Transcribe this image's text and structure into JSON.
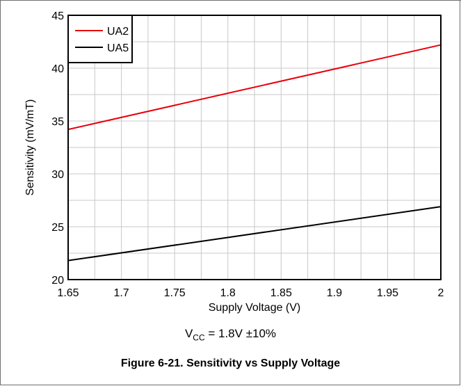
{
  "caption": "Figure 6-21. Sensitivity vs Supply Voltage",
  "condition": {
    "prefix": "V",
    "subscript": "CC",
    "suffix": " = 1.8V ±10%"
  },
  "colors": {
    "UA2": "#e8000b",
    "UA5": "#000000",
    "grid": "#c8c8c8"
  },
  "chart_data": {
    "type": "line",
    "title": "",
    "xlabel": "Supply Voltage (V)",
    "ylabel": "Sensitivity (mV/mT)",
    "xlim": [
      1.65,
      2.0
    ],
    "ylim": [
      20,
      45
    ],
    "xticks": [
      "1.65",
      "1.7",
      "1.75",
      "1.8",
      "1.85",
      "1.9",
      "1.95",
      "2"
    ],
    "yticks": [
      "20",
      "25",
      "30",
      "35",
      "40",
      "45"
    ],
    "grid": true,
    "legend_position": "top-left",
    "series": [
      {
        "name": "UA2",
        "color": "#e8000b",
        "x": [
          1.65,
          2.0
        ],
        "y": [
          34.2,
          42.2
        ]
      },
      {
        "name": "UA5",
        "color": "#000000",
        "x": [
          1.65,
          2.0
        ],
        "y": [
          21.8,
          26.9
        ]
      }
    ]
  }
}
